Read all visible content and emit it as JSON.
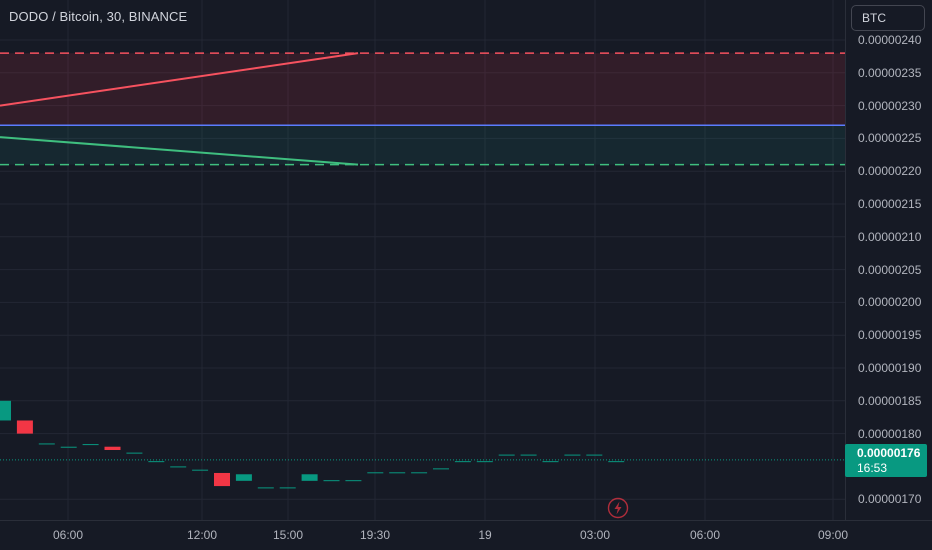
{
  "header": {
    "title": "DODO / Bitcoin, 30, BINANCE",
    "currency_button": "BTC"
  },
  "price_axis": {
    "labels": [
      "0.00000240",
      "0.00000235",
      "0.00000230",
      "0.00000225",
      "0.00000220",
      "0.00000215",
      "0.00000210",
      "0.00000205",
      "0.00000200",
      "0.00000195",
      "0.00000190",
      "0.00000185",
      "0.00000180",
      "0.00000170"
    ]
  },
  "time_axis": {
    "labels": [
      "06:00",
      "12:00",
      "15:00",
      "19:30",
      "19",
      "03:00",
      "06:00",
      "09:00"
    ]
  },
  "last_price": {
    "value": "0.00000176",
    "countdown": "16:53",
    "color": "#089981"
  },
  "colors": {
    "background": "#161a25",
    "up": "#089981",
    "down": "#f23645",
    "target_zone": "#f23645",
    "stop_zone": "#22ab94",
    "entry_line": "#2962ff"
  },
  "chart_data": {
    "type": "candlestick",
    "symbol": "DODO / Bitcoin",
    "interval": "30",
    "exchange": "BINANCE",
    "ylim": [
      1.675e-06,
      2.415e-06
    ],
    "position_tool": {
      "target_level": 2.38e-06,
      "entry_level": 2.27e-06,
      "stop_level": 2.21e-06
    },
    "candles": [
      {
        "open": 1.82e-06,
        "close": 1.85e-06,
        "dir": "up"
      },
      {
        "open": 1.82e-06,
        "close": 1.8e-06,
        "dir": "down"
      },
      {
        "open": 1.785e-06,
        "close": 1.785e-06,
        "dir": "flat"
      },
      {
        "open": 1.78e-06,
        "close": 1.78e-06,
        "dir": "flat"
      },
      {
        "open": 1.784e-06,
        "close": 1.784e-06,
        "dir": "flat"
      },
      {
        "open": 1.78e-06,
        "close": 1.775e-06,
        "dir": "down"
      },
      {
        "open": 1.771e-06,
        "close": 1.771e-06,
        "dir": "flat"
      },
      {
        "open": 1.758e-06,
        "close": 1.758e-06,
        "dir": "flat"
      },
      {
        "open": 1.75e-06,
        "close": 1.75e-06,
        "dir": "flat"
      },
      {
        "open": 1.745e-06,
        "close": 1.745e-06,
        "dir": "flat"
      },
      {
        "open": 1.74e-06,
        "close": 1.72e-06,
        "dir": "down"
      },
      {
        "open": 1.728e-06,
        "close": 1.738e-06,
        "dir": "up"
      },
      {
        "open": 1.718e-06,
        "close": 1.718e-06,
        "dir": "flat"
      },
      {
        "open": 1.718e-06,
        "close": 1.718e-06,
        "dir": "flat"
      },
      {
        "open": 1.728e-06,
        "close": 1.738e-06,
        "dir": "up"
      },
      {
        "open": 1.729e-06,
        "close": 1.729e-06,
        "dir": "flat"
      },
      {
        "open": 1.729e-06,
        "close": 1.729e-06,
        "dir": "flat"
      },
      {
        "open": 1.741e-06,
        "close": 1.741e-06,
        "dir": "flat"
      },
      {
        "open": 1.741e-06,
        "close": 1.741e-06,
        "dir": "flat"
      },
      {
        "open": 1.741e-06,
        "close": 1.741e-06,
        "dir": "flat"
      },
      {
        "open": 1.747e-06,
        "close": 1.747e-06,
        "dir": "flat"
      },
      {
        "open": 1.758e-06,
        "close": 1.758e-06,
        "dir": "flat"
      },
      {
        "open": 1.758e-06,
        "close": 1.758e-06,
        "dir": "flat"
      },
      {
        "open": 1.768e-06,
        "close": 1.768e-06,
        "dir": "flat"
      },
      {
        "open": 1.768e-06,
        "close": 1.768e-06,
        "dir": "flat"
      },
      {
        "open": 1.758e-06,
        "close": 1.758e-06,
        "dir": "flat"
      },
      {
        "open": 1.768e-06,
        "close": 1.768e-06,
        "dir": "flat"
      },
      {
        "open": 1.768e-06,
        "close": 1.768e-06,
        "dir": "flat"
      },
      {
        "open": 1.758e-06,
        "close": 1.758e-06,
        "dir": "flat"
      }
    ]
  }
}
